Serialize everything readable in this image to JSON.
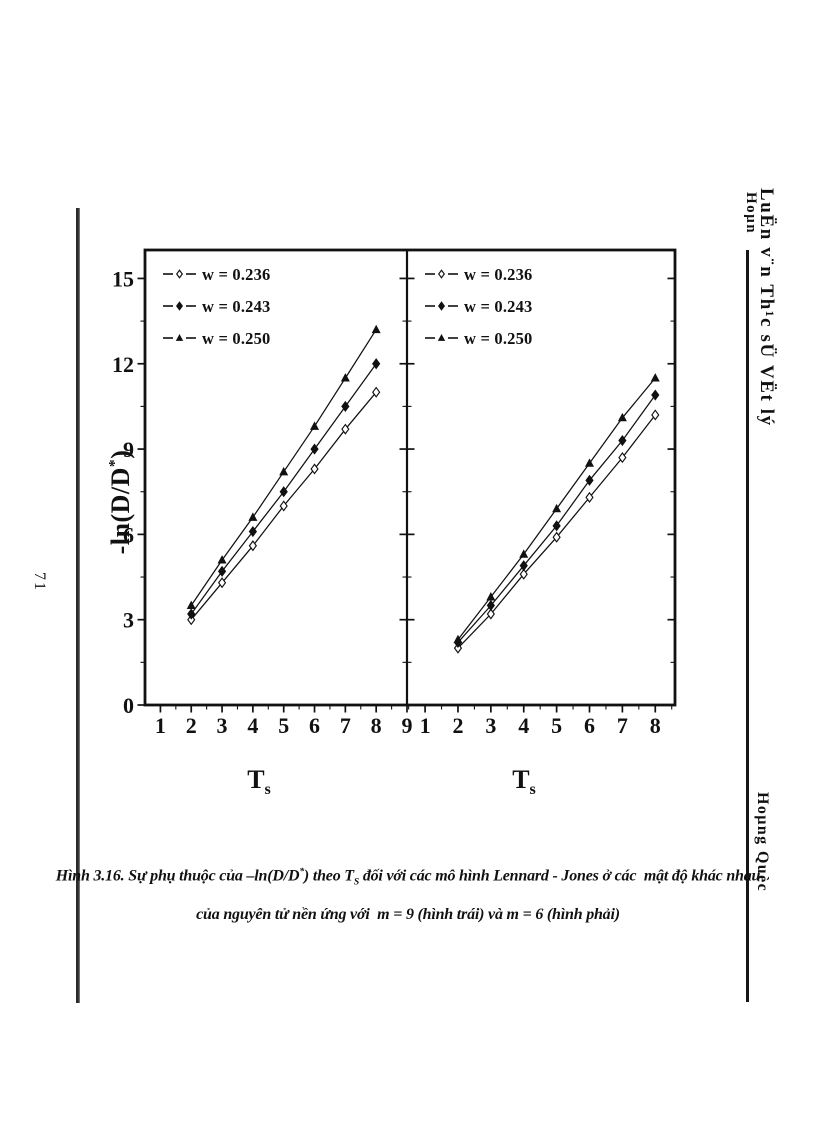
{
  "page": {
    "background": "#ffffff",
    "ink": "#111111",
    "left_page_number": "71"
  },
  "margins": {
    "header_main": "LuËn v¨n Th¹c sÜ VËt lý",
    "header_secondary": "Hoµn",
    "author": "Hoµng Quèc"
  },
  "figure": {
    "ylabel": {
      "pre": "-ln(D/D",
      "sup": "*",
      "post": ")"
    },
    "xlabel": {
      "main": "T",
      "sub": "s"
    }
  },
  "caption": {
    "seg1": "Hình 3.16. Sự phụ thuộc của –ln(D/D",
    "seg1_sup": "*",
    "seg2": ") theo T",
    "seg2_sub": "S",
    "seg3": " đối với các mô hình Lennard - Jones ở các  mật độ khác nhau",
    "line2": "của nguyên tử nền ứng với  m = 9 (hình trái) và m = 6 (hình phải)"
  },
  "chart_data": [
    {
      "type": "line",
      "title": "m = 9 (left panel)",
      "x": [
        2,
        3,
        4,
        5,
        6,
        7,
        8
      ],
      "series": [
        {
          "name": "w = 0.236",
          "marker": "open-diamond",
          "values": [
            3.0,
            4.3,
            5.6,
            7.0,
            8.3,
            9.7,
            11.0
          ]
        },
        {
          "name": "w = 0.243",
          "marker": "filled-diamond",
          "values": [
            3.2,
            4.7,
            6.1,
            7.5,
            9.0,
            10.5,
            12.0
          ]
        },
        {
          "name": "w = 0.250",
          "marker": "filled-triangle",
          "values": [
            3.5,
            5.1,
            6.6,
            8.2,
            9.8,
            11.5,
            13.2
          ]
        }
      ],
      "xlabel": "Ts",
      "ylabel": "-ln(D/D*)",
      "xlim": [
        0.5,
        9.0
      ],
      "ylim": [
        0,
        16
      ],
      "x_ticks": [
        1,
        2,
        3,
        4,
        5,
        6,
        7,
        8,
        9
      ],
      "y_ticks": [
        0,
        3,
        6,
        9,
        12,
        15
      ],
      "y_tick_labels_shown": true,
      "grid": false,
      "legend_position": "top-left"
    },
    {
      "type": "line",
      "title": "m = 6 (right panel)",
      "x": [
        2,
        3,
        4,
        5,
        6,
        7,
        8
      ],
      "series": [
        {
          "name": "w = 0.236",
          "marker": "open-diamond",
          "values": [
            2.0,
            3.2,
            4.6,
            5.9,
            7.3,
            8.7,
            10.2
          ]
        },
        {
          "name": "w = 0.243",
          "marker": "filled-diamond",
          "values": [
            2.2,
            3.5,
            4.9,
            6.3,
            7.9,
            9.3,
            10.9
          ]
        },
        {
          "name": "w = 0.250",
          "marker": "filled-triangle",
          "values": [
            2.3,
            3.8,
            5.3,
            6.9,
            8.5,
            10.1,
            11.5
          ]
        }
      ],
      "xlabel": "Ts",
      "ylabel": "",
      "xlim": [
        0.45,
        8.6
      ],
      "ylim": [
        0,
        16
      ],
      "x_ticks": [
        1,
        2,
        3,
        4,
        5,
        6,
        7,
        8
      ],
      "y_ticks": [
        0,
        3,
        6,
        9,
        12,
        15
      ],
      "y_tick_labels_shown": false,
      "grid": false,
      "legend_position": "top-left"
    }
  ]
}
